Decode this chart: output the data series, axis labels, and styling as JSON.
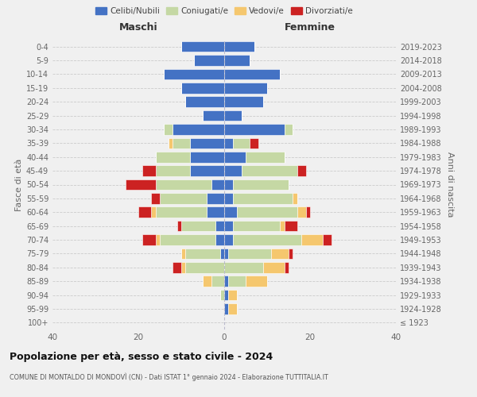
{
  "age_groups": [
    "100+",
    "95-99",
    "90-94",
    "85-89",
    "80-84",
    "75-79",
    "70-74",
    "65-69",
    "60-64",
    "55-59",
    "50-54",
    "45-49",
    "40-44",
    "35-39",
    "30-34",
    "25-29",
    "20-24",
    "15-19",
    "10-14",
    "5-9",
    "0-4"
  ],
  "birth_years": [
    "≤ 1923",
    "1924-1928",
    "1929-1933",
    "1934-1938",
    "1939-1943",
    "1944-1948",
    "1949-1953",
    "1954-1958",
    "1959-1963",
    "1964-1968",
    "1969-1973",
    "1974-1978",
    "1979-1983",
    "1984-1988",
    "1989-1993",
    "1994-1998",
    "1999-2003",
    "2004-2008",
    "2009-2013",
    "2014-2018",
    "2019-2023"
  ],
  "colors": {
    "celibi": "#4472C4",
    "coniugati": "#c5d8a4",
    "vedovi": "#f5c76e",
    "divorziati": "#cc2222"
  },
  "males": {
    "celibi": [
      0,
      0,
      0,
      0,
      0,
      1,
      2,
      2,
      4,
      4,
      3,
      8,
      8,
      8,
      12,
      5,
      9,
      10,
      14,
      7,
      10
    ],
    "coniugati": [
      0,
      0,
      1,
      3,
      9,
      8,
      13,
      8,
      12,
      11,
      13,
      8,
      8,
      4,
      2,
      0,
      0,
      0,
      0,
      0,
      0
    ],
    "vedovi": [
      0,
      0,
      0,
      2,
      1,
      1,
      1,
      0,
      1,
      0,
      0,
      0,
      0,
      1,
      0,
      0,
      0,
      0,
      0,
      0,
      0
    ],
    "divorziati": [
      0,
      0,
      0,
      0,
      2,
      0,
      3,
      1,
      3,
      2,
      7,
      3,
      0,
      0,
      0,
      0,
      0,
      0,
      0,
      0,
      0
    ]
  },
  "females": {
    "celibi": [
      0,
      1,
      1,
      1,
      0,
      1,
      2,
      2,
      3,
      2,
      2,
      4,
      5,
      2,
      14,
      4,
      9,
      10,
      13,
      6,
      7
    ],
    "coniugati": [
      0,
      0,
      0,
      4,
      9,
      10,
      16,
      11,
      14,
      14,
      13,
      13,
      9,
      4,
      2,
      0,
      0,
      0,
      0,
      0,
      0
    ],
    "vedovi": [
      0,
      2,
      2,
      5,
      5,
      4,
      5,
      1,
      2,
      1,
      0,
      0,
      0,
      0,
      0,
      0,
      0,
      0,
      0,
      0,
      0
    ],
    "divorziati": [
      0,
      0,
      0,
      0,
      1,
      1,
      2,
      3,
      1,
      0,
      0,
      2,
      0,
      2,
      0,
      0,
      0,
      0,
      0,
      0,
      0
    ]
  },
  "title": "Popolazione per età, sesso e stato civile - 2024",
  "subtitle": "COMUNE DI MONTALDO DI MONDOVÌ (CN) - Dati ISTAT 1° gennaio 2024 - Elaborazione TUTTITALIA.IT",
  "xlabel_left": "Maschi",
  "xlabel_right": "Femmine",
  "ylabel_left": "Fasce di età",
  "ylabel_right": "Anni di nascita",
  "xlim": 40,
  "legend_labels": [
    "Celibi/Nubili",
    "Coniugati/e",
    "Vedovi/e",
    "Divorziati/e"
  ],
  "background_color": "#f0f0f0"
}
